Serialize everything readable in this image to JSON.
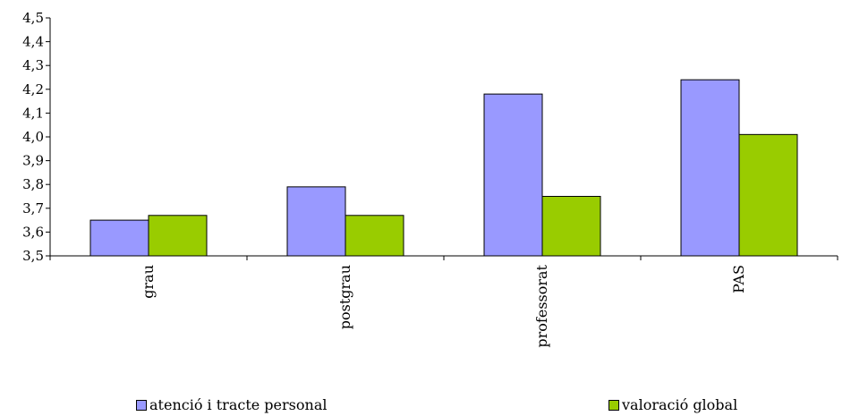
{
  "chart_data": {
    "type": "bar",
    "categories": [
      "grau",
      "postgrau",
      "professorat",
      "PAS"
    ],
    "series": [
      {
        "name": "atenció i tracte personal",
        "color": "#9999ff",
        "values": [
          3.65,
          3.79,
          4.18,
          4.24
        ]
      },
      {
        "name": "valoració global",
        "color": "#99cc00",
        "values": [
          3.67,
          3.67,
          3.75,
          4.01
        ]
      }
    ],
    "yticks": [
      "3,5",
      "3,6",
      "3,7",
      "3,8",
      "3,9",
      "4,0",
      "4,1",
      "4,2",
      "4,3",
      "4,4",
      "4,5"
    ],
    "ylim": [
      3.5,
      4.5
    ],
    "title": "",
    "xlabel": "",
    "ylabel": "",
    "grid": false,
    "legend_position": "bottom"
  }
}
